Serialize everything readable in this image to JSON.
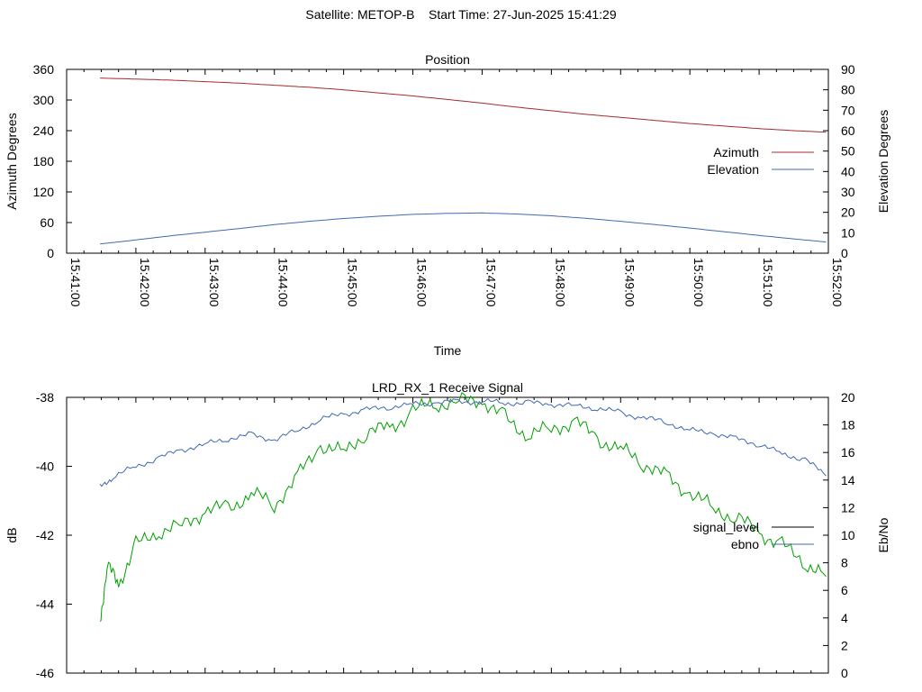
{
  "suptitle": "Satellite: METOP-B    Start Time: 27-Jun-2025 15:41:29",
  "chart_data": [
    {
      "type": "line",
      "title": "Position",
      "xlabel": "Time",
      "ylabel_left": "Azimuth Degrees",
      "ylabel_right": "Elevation Degrees",
      "x_ticks": [
        "15:41:00",
        "15:42:00",
        "15:43:00",
        "15:44:00",
        "15:45:00",
        "15:46:00",
        "15:47:00",
        "15:48:00",
        "15:49:00",
        "15:50:00",
        "15:51:00",
        "15:52:00"
      ],
      "xlim": [
        "15:41:00",
        "15:52:00"
      ],
      "ylim_left": [
        0,
        360
      ],
      "yticks_left": [
        0,
        60,
        120,
        180,
        240,
        300,
        360
      ],
      "ylim_right": [
        0,
        90
      ],
      "yticks_right": [
        0,
        10,
        20,
        30,
        40,
        50,
        60,
        70,
        80,
        90
      ],
      "legend_position": "right",
      "series": [
        {
          "name": "Azimuth",
          "axis": "left",
          "color": "#a52a2a",
          "x": [
            "15:41:29",
            "15:42:00",
            "15:42:30",
            "15:43:00",
            "15:43:30",
            "15:44:00",
            "15:44:30",
            "15:45:00",
            "15:45:30",
            "15:46:00",
            "15:46:30",
            "15:47:00",
            "15:47:30",
            "15:48:00",
            "15:48:30",
            "15:49:00",
            "15:49:30",
            "15:50:00",
            "15:50:30",
            "15:51:00",
            "15:51:30",
            "15:51:58"
          ],
          "y": [
            343,
            341,
            339,
            336,
            333,
            329,
            325,
            320,
            314,
            308,
            301,
            294,
            286,
            279,
            272,
            266,
            260,
            254,
            249,
            244,
            240,
            237
          ]
        },
        {
          "name": "Elevation",
          "axis": "right",
          "color": "#4169b0",
          "x": [
            "15:41:29",
            "15:42:00",
            "15:42:30",
            "15:43:00",
            "15:43:30",
            "15:44:00",
            "15:44:30",
            "15:45:00",
            "15:45:30",
            "15:46:00",
            "15:46:30",
            "15:47:00",
            "15:47:30",
            "15:48:00",
            "15:48:30",
            "15:49:00",
            "15:49:30",
            "15:50:00",
            "15:50:30",
            "15:51:00",
            "15:51:30",
            "15:51:58"
          ],
          "y": [
            4.5,
            6.5,
            8.5,
            10.3,
            12.1,
            14.0,
            15.6,
            17.0,
            18.1,
            19.0,
            19.5,
            19.7,
            19.2,
            18.3,
            17.1,
            15.6,
            14.0,
            12.3,
            10.5,
            8.7,
            7.0,
            5.5
          ]
        }
      ]
    },
    {
      "type": "line",
      "title": "LRD_RX_1 Receive Signal",
      "ylabel_left": "dB",
      "ylabel_right": "Eb/No",
      "xlim": [
        "15:41:00",
        "15:52:00"
      ],
      "ylim_left": [
        -46,
        -38
      ],
      "yticks_left": [
        -46,
        -44,
        -42,
        -40,
        -38
      ],
      "ylim_right": [
        0,
        20
      ],
      "yticks_right": [
        0,
        2,
        4,
        6,
        8,
        10,
        12,
        14,
        16,
        18,
        20
      ],
      "legend_position": "right",
      "series": [
        {
          "name": "signal_level",
          "axis": "left",
          "color": "#00a000",
          "x": [
            "15:41:29",
            "15:41:35",
            "15:41:45",
            "15:42:00",
            "15:42:20",
            "15:42:40",
            "15:43:00",
            "15:43:20",
            "15:43:40",
            "15:44:00",
            "15:44:20",
            "15:44:40",
            "15:45:00",
            "15:45:20",
            "15:45:40",
            "15:46:00",
            "15:46:20",
            "15:46:40",
            "15:47:00",
            "15:47:20",
            "15:47:40",
            "15:48:00",
            "15:48:20",
            "15:48:40",
            "15:49:00",
            "15:49:20",
            "15:49:40",
            "15:50:00",
            "15:50:20",
            "15:50:40",
            "15:51:00",
            "15:51:20",
            "15:51:40",
            "15:51:58"
          ],
          "y": [
            -44.5,
            -42.9,
            -43.4,
            -42.3,
            -41.9,
            -41.7,
            -41.3,
            -41.2,
            -40.8,
            -41.1,
            -40.3,
            -39.4,
            -39.6,
            -39.0,
            -38.9,
            -38.4,
            -38.2,
            -38.1,
            -38.1,
            -38.6,
            -39.1,
            -38.9,
            -38.7,
            -39.2,
            -39.5,
            -39.9,
            -40.3,
            -40.8,
            -41.2,
            -41.5,
            -41.9,
            -42.3,
            -42.8,
            -43.2
          ]
        },
        {
          "name": "ebno",
          "axis": "right",
          "color": "#4169b0",
          "x": [
            "15:41:29",
            "15:41:40",
            "15:42:00",
            "15:42:20",
            "15:42:40",
            "15:43:00",
            "15:43:20",
            "15:43:40",
            "15:44:00",
            "15:44:20",
            "15:44:40",
            "15:45:00",
            "15:45:20",
            "15:45:40",
            "15:46:00",
            "15:46:20",
            "15:46:40",
            "15:47:00",
            "15:47:20",
            "15:47:40",
            "15:48:00",
            "15:48:20",
            "15:48:40",
            "15:49:00",
            "15:49:20",
            "15:49:40",
            "15:50:00",
            "15:50:20",
            "15:50:40",
            "15:51:00",
            "15:51:20",
            "15:51:40",
            "15:51:58"
          ],
          "y": [
            13.5,
            14.2,
            15.0,
            15.6,
            16.2,
            16.6,
            17.0,
            17.3,
            16.9,
            17.6,
            18.4,
            18.8,
            19.1,
            19.3,
            19.5,
            19.6,
            19.7,
            19.7,
            19.6,
            19.6,
            19.5,
            19.4,
            19.2,
            18.9,
            18.5,
            18.2,
            17.6,
            17.4,
            17.0,
            16.6,
            15.9,
            15.5,
            14.3
          ]
        }
      ]
    }
  ]
}
